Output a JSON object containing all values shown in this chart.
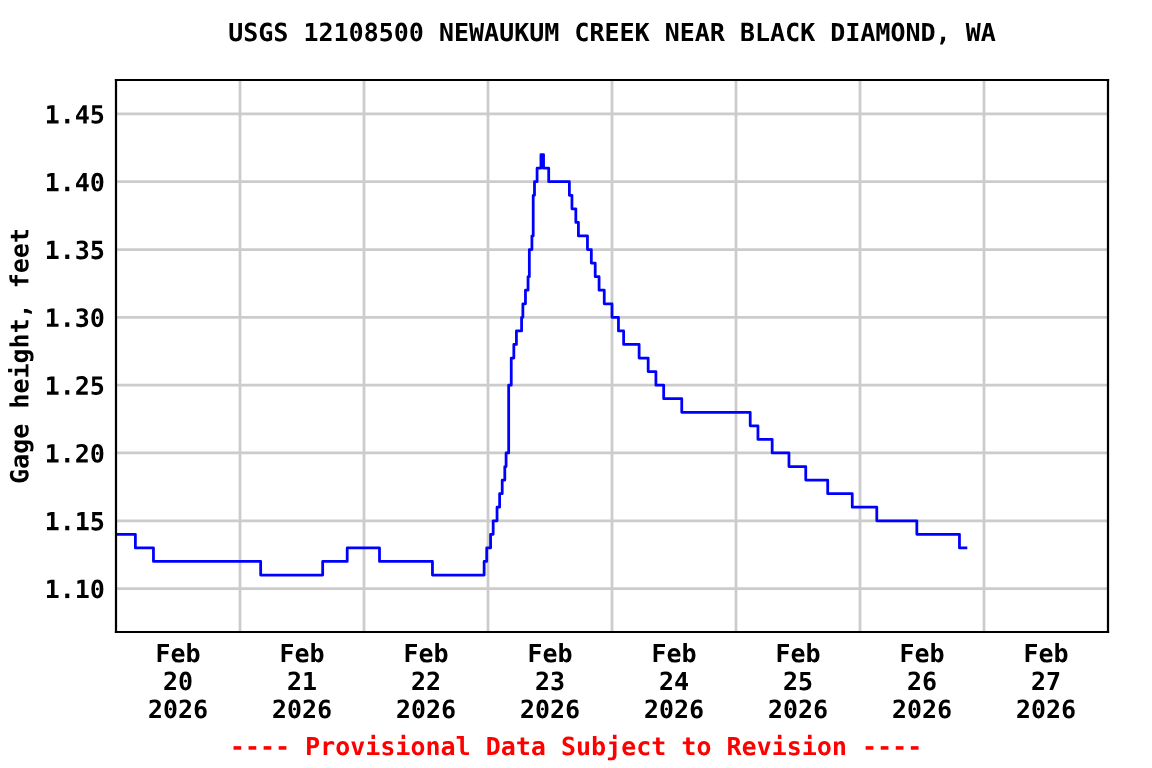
{
  "chart_data": {
    "type": "step",
    "title": "USGS 12108500 NEWAUKUM CREEK NEAR BLACK DIAMOND, WA",
    "ylabel": "Gage height, feet",
    "annotations": [
      "---- Provisional Data Subject to Revision ----"
    ],
    "x": [
      "2026-02-20T00:00",
      "2026-02-20T03:45",
      "2026-02-20T07:15",
      "2026-02-21T04:00",
      "2026-02-21T16:00",
      "2026-02-21T20:45",
      "2026-02-22T03:00",
      "2026-02-22T13:15",
      "2026-02-22T23:15",
      "2026-02-22T23:45",
      "2026-02-23T00:30",
      "2026-02-23T01:00",
      "2026-02-23T01:45",
      "2026-02-23T02:15",
      "2026-02-23T02:45",
      "2026-02-23T03:15",
      "2026-02-23T03:30",
      "2026-02-23T04:00",
      "2026-02-23T04:30",
      "2026-02-23T05:00",
      "2026-02-23T05:30",
      "2026-02-23T06:30",
      "2026-02-23T06:45",
      "2026-02-23T07:15",
      "2026-02-23T07:45",
      "2026-02-23T08:00",
      "2026-02-23T08:30",
      "2026-02-23T08:45",
      "2026-02-23T09:00",
      "2026-02-23T09:30",
      "2026-02-23T10:15",
      "2026-02-23T10:45",
      "2026-02-23T11:45",
      "2026-02-23T15:45",
      "2026-02-23T16:15",
      "2026-02-23T17:00",
      "2026-02-23T17:30",
      "2026-02-23T19:15",
      "2026-02-23T20:00",
      "2026-02-23T20:45",
      "2026-02-23T21:30",
      "2026-02-23T22:30",
      "2026-02-24T00:00",
      "2026-02-24T01:15",
      "2026-02-24T02:15",
      "2026-02-24T05:15",
      "2026-02-24T07:00",
      "2026-02-24T08:30",
      "2026-02-24T10:00",
      "2026-02-24T13:30",
      "2026-02-25T02:45",
      "2026-02-25T04:15",
      "2026-02-25T07:00",
      "2026-02-25T10:15",
      "2026-02-25T13:30",
      "2026-02-25T17:45",
      "2026-02-25T22:30",
      "2026-02-26T03:15",
      "2026-02-26T11:00",
      "2026-02-26T19:15",
      "2026-02-26T20:30"
    ],
    "series": [
      {
        "color": "#0000ff",
        "values": [
          1.14,
          1.13,
          1.12,
          1.11,
          1.12,
          1.13,
          1.12,
          1.11,
          1.12,
          1.13,
          1.14,
          1.15,
          1.16,
          1.17,
          1.18,
          1.19,
          1.2,
          1.25,
          1.27,
          1.28,
          1.29,
          1.3,
          1.31,
          1.32,
          1.33,
          1.35,
          1.36,
          1.39,
          1.4,
          1.41,
          1.42,
          1.41,
          1.4,
          1.39,
          1.38,
          1.37,
          1.36,
          1.35,
          1.34,
          1.33,
          1.32,
          1.31,
          1.3,
          1.29,
          1.28,
          1.27,
          1.26,
          1.25,
          1.24,
          1.23,
          1.22,
          1.21,
          1.2,
          1.19,
          1.18,
          1.17,
          1.16,
          1.15,
          1.14,
          1.13,
          1.13
        ]
      }
    ],
    "xlim": [
      "2026-02-20T00:00",
      "2026-02-28T00:00"
    ],
    "xticks": [
      {
        "value": "2026-02-20T12:00",
        "label": "Feb\n20\n2026"
      },
      {
        "value": "2026-02-21T12:00",
        "label": "Feb\n21\n2026"
      },
      {
        "value": "2026-02-22T12:00",
        "label": "Feb\n22\n2026"
      },
      {
        "value": "2026-02-23T12:00",
        "label": "Feb\n23\n2026"
      },
      {
        "value": "2026-02-24T12:00",
        "label": "Feb\n24\n2026"
      },
      {
        "value": "2026-02-25T12:00",
        "label": "Feb\n25\n2026"
      },
      {
        "value": "2026-02-26T12:00",
        "label": "Feb\n26\n2026"
      },
      {
        "value": "2026-02-27T12:00",
        "label": "Feb\n27\n2026"
      }
    ],
    "ylim": [
      1.068,
      1.475
    ],
    "yticks": [
      {
        "value": 1.1,
        "label": "1.10"
      },
      {
        "value": 1.15,
        "label": "1.15"
      },
      {
        "value": 1.2,
        "label": "1.20"
      },
      {
        "value": 1.25,
        "label": "1.25"
      },
      {
        "value": 1.3,
        "label": "1.30"
      },
      {
        "value": 1.35,
        "label": "1.35"
      },
      {
        "value": 1.4,
        "label": "1.40"
      },
      {
        "value": 1.45,
        "label": "1.45"
      }
    ],
    "grid": true
  }
}
